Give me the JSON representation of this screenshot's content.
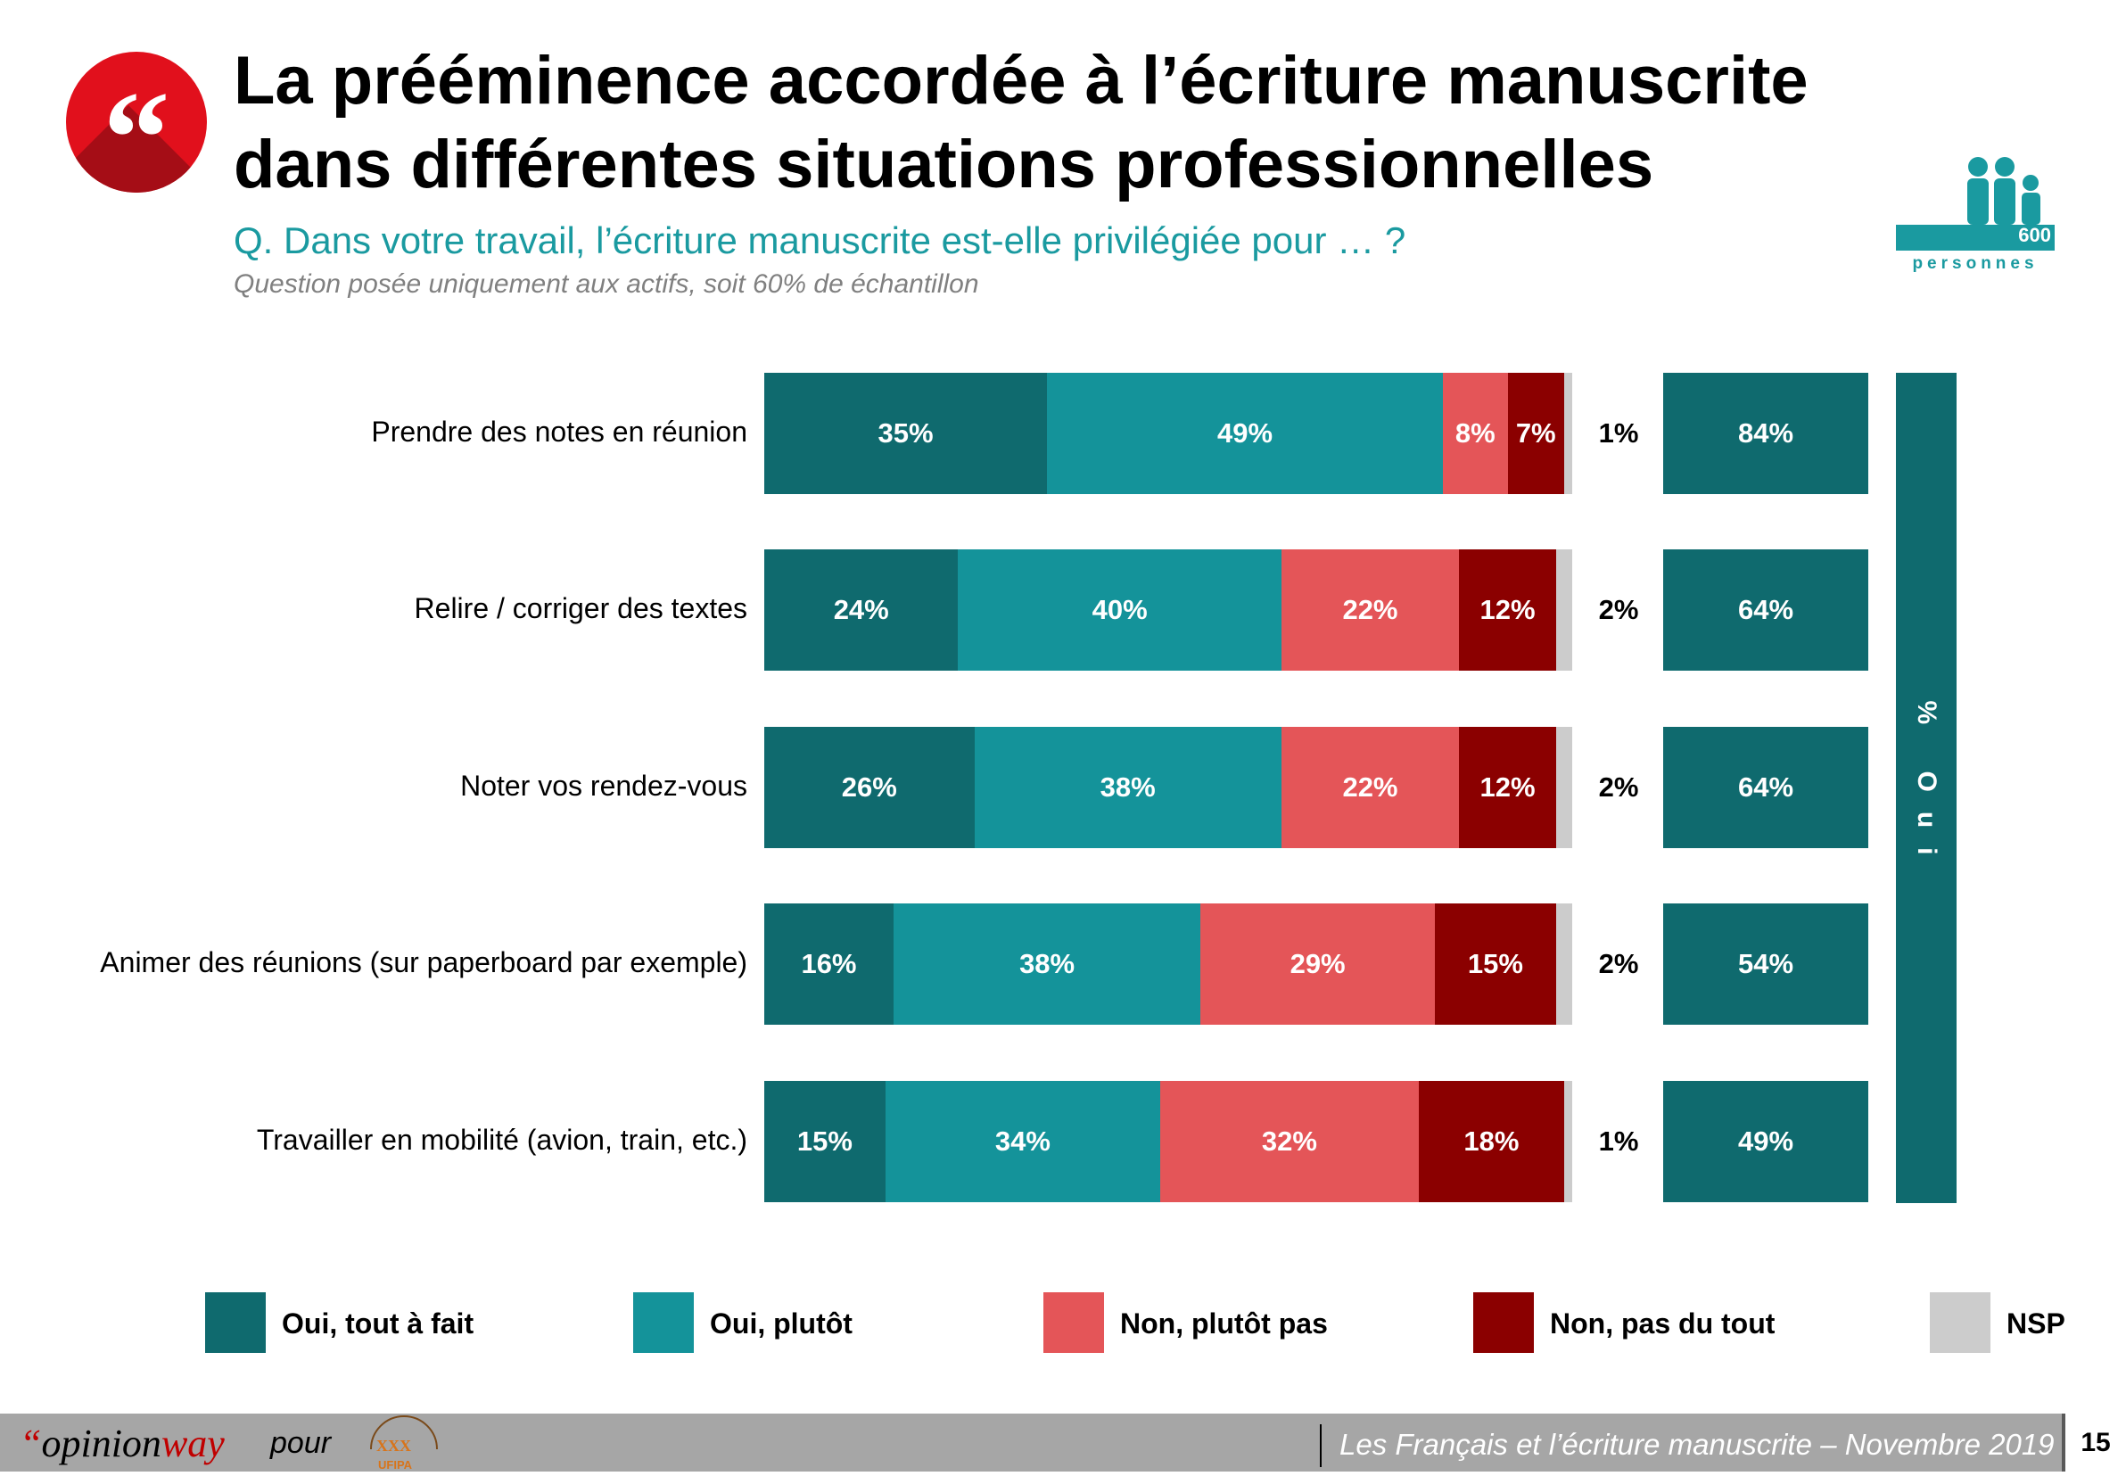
{
  "header": {
    "title_line1": "La prééminence accordée à l’écriture manuscrite",
    "title_line2": "dans différentes situations professionnelles",
    "question": "Q. Dans votre travail, l’écriture manuscrite est-elle privilégiée pour … ?",
    "subnote": "Question posée uniquement aux actifs, soit 60% de échantillon",
    "quote_icon": "quote-icon",
    "people_icon": "people-icon",
    "sample_count": "600",
    "sample_unit": "personnes"
  },
  "colors": {
    "oui_tout_a_fait": "#0f6a6e",
    "oui_plutot": "#14939a",
    "non_plutot_pas": "#e45558",
    "non_pas_du_tout": "#8b0000",
    "nsp": "#cccccc",
    "accent_red": "#e1101c",
    "accent_teal": "#1a9aa0"
  },
  "total_label": "% Oui",
  "chart_data": {
    "type": "bar",
    "orientation": "horizontal",
    "stacked": true,
    "unit": "%",
    "categories": [
      "Prendre des notes en réunion",
      "Relire / corriger des textes",
      "Noter vos rendez-vous",
      "Animer des réunions (sur paperboard par exemple)",
      "Travailler en mobilité (avion, train, etc.)"
    ],
    "series": [
      {
        "name": "Oui, tout à fait",
        "values": [
          35,
          24,
          26,
          16,
          15
        ],
        "labels": [
          "35%",
          "24%",
          "26%",
          "16%",
          "15%"
        ]
      },
      {
        "name": "Oui, plutôt",
        "values": [
          49,
          40,
          38,
          38,
          34
        ],
        "labels": [
          "49%",
          "40%",
          "38%",
          "38%",
          "34%"
        ]
      },
      {
        "name": "Non, plutôt pas",
        "values": [
          8,
          22,
          22,
          29,
          32
        ],
        "labels": [
          "8%",
          "22%",
          "22%",
          "29%",
          "32%"
        ]
      },
      {
        "name": "Non, pas du tout",
        "values": [
          7,
          12,
          12,
          15,
          18
        ],
        "labels": [
          "7%",
          "12%",
          "12%",
          "15%",
          "18%"
        ]
      },
      {
        "name": "NSP",
        "values": [
          1,
          2,
          2,
          2,
          1
        ],
        "labels": [
          "1%",
          "2%",
          "2%",
          "2%",
          "1%"
        ]
      }
    ],
    "totals": {
      "name": "% Oui",
      "values": [
        84,
        64,
        64,
        54,
        49
      ],
      "labels": [
        "84%",
        "64%",
        "64%",
        "54%",
        "49%"
      ]
    },
    "legend_position": "bottom",
    "grid": false
  },
  "footer": {
    "brand_quote": "“",
    "brand_opinion": "opinion",
    "brand_way": "way",
    "pour": "pour",
    "partner_logo": "partner-logo-icon",
    "partner_logo_text": "UFIPA",
    "source": "Les Français et l’écriture manuscrite – Novembre 2019",
    "page_number": "15"
  }
}
